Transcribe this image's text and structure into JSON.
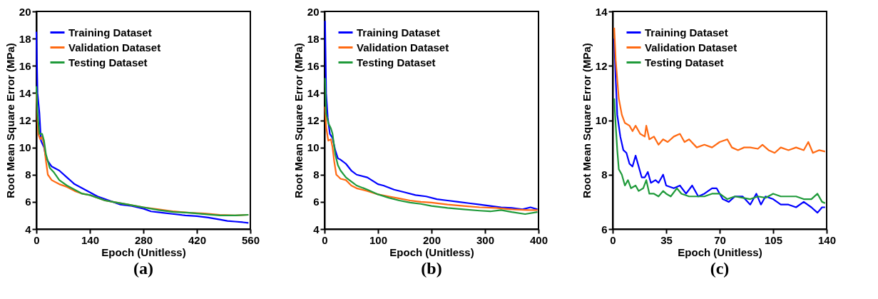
{
  "chart_data": [
    {
      "type": "line",
      "annotations": [
        "(a)"
      ],
      "xlabel": "Epoch (Unitless)",
      "ylabel": "Root Mean Square Error (MPa)",
      "xlim": [
        0,
        560
      ],
      "xticks": [
        0,
        140,
        280,
        420,
        560
      ],
      "ylim": [
        4,
        20
      ],
      "yticks": [
        4,
        6,
        8,
        10,
        12,
        14,
        16,
        18,
        20
      ],
      "legend": "top left",
      "grid": false,
      "series": [
        {
          "name": "Training Dataset",
          "color": "#0000ff",
          "x": [
            0,
            3,
            8,
            12,
            20,
            25,
            30,
            40,
            60,
            80,
            100,
            120,
            140,
            160,
            180,
            200,
            220,
            250,
            280,
            300,
            330,
            360,
            390,
            420,
            450,
            480,
            500,
            520,
            540,
            555
          ],
          "values": [
            18.5,
            14,
            12.5,
            10.5,
            10,
            9.3,
            9,
            8.6,
            8.3,
            7.8,
            7.3,
            7.0,
            6.7,
            6.4,
            6.2,
            6.0,
            5.8,
            5.7,
            5.5,
            5.3,
            5.2,
            5.1,
            5.0,
            4.95,
            4.85,
            4.7,
            4.6,
            4.55,
            4.5,
            4.45
          ]
        },
        {
          "name": "Validation Dataset",
          "color": "#ff6a13",
          "x": [
            0,
            3,
            5,
            10,
            15,
            20,
            25,
            30,
            40,
            60,
            80,
            100,
            120,
            140,
            160,
            180,
            200,
            240,
            280,
            320,
            360,
            400,
            440,
            480,
            520,
            555
          ],
          "values": [
            14,
            12,
            11,
            10.6,
            10.8,
            10.2,
            9,
            8,
            7.6,
            7.3,
            7.1,
            6.8,
            6.6,
            6.5,
            6.3,
            6.1,
            6.0,
            5.8,
            5.6,
            5.45,
            5.3,
            5.2,
            5.15,
            5.05,
            5.0,
            5.05
          ]
        },
        {
          "name": "Testing Dataset",
          "color": "#1f9a3a",
          "x": [
            0,
            3,
            8,
            15,
            20,
            25,
            35,
            45,
            60,
            80,
            100,
            120,
            140,
            160,
            180,
            200,
            240,
            280,
            320,
            360,
            400,
            440,
            480,
            520,
            555
          ],
          "values": [
            14.5,
            12.5,
            11,
            11,
            10.5,
            9.5,
            8.5,
            8.2,
            7.6,
            7.2,
            6.9,
            6.6,
            6.5,
            6.3,
            6.1,
            6.0,
            5.8,
            5.6,
            5.4,
            5.25,
            5.2,
            5.1,
            5.0,
            5.0,
            5.05
          ]
        }
      ]
    },
    {
      "type": "line",
      "annotations": [
        "(b)"
      ],
      "xlabel": "Epoch (Unitless)",
      "ylabel": "Root Mean Square Error (MPa)",
      "xlim": [
        0,
        400
      ],
      "xticks": [
        0,
        100,
        200,
        300,
        400
      ],
      "ylim": [
        4,
        20
      ],
      "yticks": [
        4,
        6,
        8,
        10,
        12,
        14,
        16,
        18,
        20
      ],
      "legend": "top left",
      "grid": false,
      "series": [
        {
          "name": "Training Dataset",
          "color": "#0000ff",
          "x": [
            1,
            3,
            6,
            10,
            15,
            20,
            25,
            30,
            40,
            50,
            60,
            80,
            100,
            110,
            130,
            150,
            170,
            190,
            210,
            230,
            250,
            270,
            290,
            310,
            330,
            350,
            370,
            385,
            398
          ],
          "values": [
            19.3,
            14,
            12.2,
            11,
            10.7,
            9.8,
            9.2,
            9.1,
            8.8,
            8.3,
            8.0,
            7.8,
            7.3,
            7.2,
            6.9,
            6.7,
            6.5,
            6.4,
            6.2,
            6.1,
            6.0,
            5.9,
            5.8,
            5.7,
            5.6,
            5.55,
            5.45,
            5.6,
            5.45
          ]
        },
        {
          "name": "Validation Dataset",
          "color": "#ff6a13",
          "x": [
            1,
            3,
            7,
            12,
            15,
            18,
            22,
            30,
            40,
            50,
            60,
            80,
            100,
            120,
            140,
            160,
            180,
            200,
            230,
            260,
            290,
            320,
            350,
            380,
            398
          ],
          "values": [
            13,
            11.5,
            10.5,
            10.6,
            10,
            9,
            8,
            7.7,
            7.6,
            7.2,
            7.0,
            6.8,
            6.55,
            6.4,
            6.25,
            6.1,
            6.0,
            5.95,
            5.8,
            5.7,
            5.6,
            5.55,
            5.45,
            5.4,
            5.4
          ]
        },
        {
          "name": "Testing Dataset",
          "color": "#1f9a3a",
          "x": [
            1,
            3,
            7,
            12,
            15,
            20,
            25,
            30,
            40,
            50,
            60,
            80,
            100,
            120,
            140,
            160,
            180,
            200,
            230,
            260,
            290,
            310,
            330,
            350,
            375,
            398
          ],
          "values": [
            15.1,
            12.5,
            11.8,
            11.4,
            11,
            9.5,
            8.7,
            8.3,
            7.8,
            7.5,
            7.2,
            6.9,
            6.55,
            6.3,
            6.1,
            5.95,
            5.85,
            5.7,
            5.55,
            5.45,
            5.35,
            5.3,
            5.4,
            5.25,
            5.1,
            5.25
          ]
        }
      ]
    },
    {
      "type": "line",
      "annotations": [
        "(c)"
      ],
      "xlabel": "Epoch (Unitless)",
      "ylabel": "Root Mean Square Error (MPa)",
      "xlim": [
        0,
        140
      ],
      "xticks": [
        0,
        35,
        70,
        105,
        140
      ],
      "ylim": [
        6,
        14
      ],
      "yticks": [
        6,
        8,
        10,
        12,
        14
      ],
      "legend": "top left",
      "grid": false,
      "series": [
        {
          "name": "Training Dataset",
          "color": "#0000ff",
          "x": [
            1,
            2,
            3,
            5,
            7,
            9,
            11,
            13,
            15,
            17,
            19,
            21,
            23,
            25,
            28,
            30,
            33,
            35,
            40,
            44,
            48,
            52,
            56,
            60,
            65,
            68,
            72,
            76,
            80,
            85,
            90,
            94,
            97,
            100,
            105,
            110,
            115,
            120,
            125,
            130,
            134,
            137,
            139
          ],
          "values": [
            13,
            11.5,
            10.2,
            9.4,
            8.9,
            8.8,
            8.4,
            8.3,
            8.7,
            8.3,
            7.9,
            7.9,
            8.1,
            7.7,
            7.8,
            7.7,
            8.0,
            7.6,
            7.5,
            7.6,
            7.3,
            7.6,
            7.2,
            7.3,
            7.5,
            7.5,
            7.1,
            7.0,
            7.2,
            7.2,
            6.9,
            7.3,
            6.9,
            7.2,
            7.1,
            6.9,
            6.9,
            6.8,
            7.0,
            6.8,
            6.6,
            6.8,
            6.8
          ]
        },
        {
          "name": "Validation Dataset",
          "color": "#ff6a13",
          "x": [
            1,
            2,
            4,
            6,
            8,
            11,
            13,
            15,
            18,
            21,
            22,
            24,
            27,
            30,
            33,
            36,
            40,
            44,
            47,
            50,
            55,
            60,
            65,
            70,
            75,
            78,
            82,
            86,
            90,
            95,
            98,
            102,
            106,
            110,
            115,
            120,
            125,
            128,
            131,
            135,
            139
          ],
          "values": [
            13.4,
            12.2,
            10.8,
            10.2,
            9.9,
            9.8,
            9.6,
            9.8,
            9.5,
            9.4,
            9.8,
            9.3,
            9.4,
            9.1,
            9.3,
            9.2,
            9.4,
            9.5,
            9.2,
            9.3,
            9.0,
            9.1,
            9.0,
            9.2,
            9.3,
            9.0,
            8.9,
            9.0,
            9.0,
            8.95,
            9.1,
            8.9,
            8.8,
            9.0,
            8.9,
            9.0,
            8.9,
            9.2,
            8.8,
            8.9,
            8.85
          ]
        },
        {
          "name": "Testing Dataset",
          "color": "#1f9a3a",
          "x": [
            1,
            2,
            3,
            4,
            6,
            8,
            10,
            12,
            15,
            17,
            20,
            22,
            24,
            27,
            30,
            33,
            35,
            38,
            42,
            45,
            50,
            55,
            60,
            65,
            70,
            75,
            80,
            85,
            90,
            95,
            100,
            105,
            110,
            115,
            120,
            125,
            130,
            134,
            137,
            139
          ],
          "values": [
            10.8,
            9.8,
            8.9,
            8.2,
            8.0,
            7.6,
            7.8,
            7.5,
            7.6,
            7.4,
            7.5,
            7.8,
            7.3,
            7.3,
            7.2,
            7.4,
            7.3,
            7.2,
            7.5,
            7.3,
            7.2,
            7.2,
            7.2,
            7.3,
            7.3,
            7.1,
            7.2,
            7.15,
            7.1,
            7.2,
            7.15,
            7.3,
            7.2,
            7.2,
            7.2,
            7.1,
            7.1,
            7.3,
            7.0,
            6.95
          ]
        }
      ]
    }
  ]
}
